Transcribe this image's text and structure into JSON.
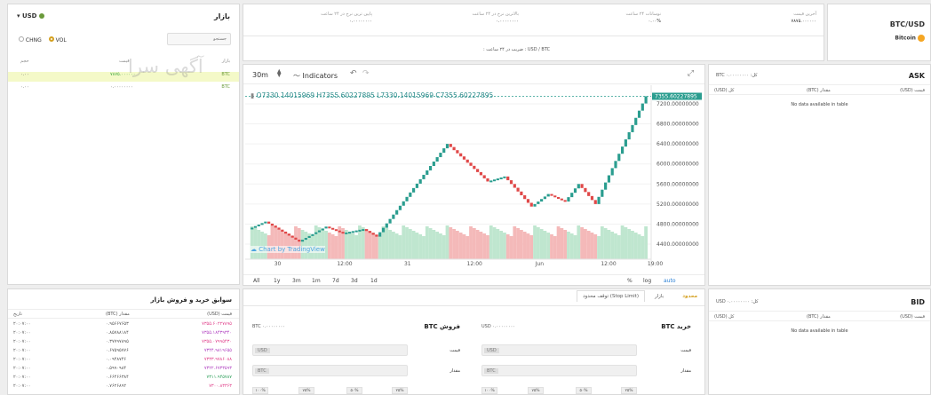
{
  "market": {
    "title": "بازار",
    "currency": "USD",
    "search_placeholder": "جستجو",
    "opt_chng": "CHNG",
    "opt_vol": "VOL",
    "columns": [
      "بازار",
      "قیمت",
      "حجم"
    ],
    "rows": [
      {
        "price": "۷۸۷۵.۰۰۰۰۰۰",
        "vol": "۰.۰۰",
        "pair": "BTC",
        "selected": true
      },
      {
        "price": "۰.۰۰۰۰۰۰۰۰",
        "vol": "۰.۰۰",
        "pair": "BTC",
        "selected": false
      }
    ]
  },
  "stats": {
    "last_price": {
      "label": "آخرین قیمت",
      "value": "۷۸۷۵.۰۰۰۰۰۰"
    },
    "change_24h": {
      "label": "نوسانات ۲۴ ساعت",
      "value": "۰.۰۰%"
    },
    "high_24h": {
      "label": "بالاترین نرخ در ۲۴ ساعت",
      "value": "۰.۰۰۰۰۰۰۰۰"
    },
    "low_24h": {
      "label": "پایین ترین نرخ در ۲۴ ساعت",
      "value": "۰.۰۰۰۰۰۰۰۰"
    },
    "rate_line": "USD / BTC : ضریب در ۲۴ ساعت :"
  },
  "pair": {
    "name": "BTC/USD",
    "coin": "Bitcoin"
  },
  "watermark": "آگهی سرا",
  "chart_data": {
    "type": "candlestick",
    "interval": "30m",
    "indicators_label": "Indicators",
    "ohlc": {
      "O": "7330.14015969",
      "H": "7355.60227895",
      "L": "7330.14015969",
      "C": "7355.60227895"
    },
    "current_price_label": "7355.60227895",
    "y_ticks": [
      "7200.00000000",
      "6800.00000000",
      "6400.00000000",
      "6000.00000000",
      "5600.00000000",
      "5200.00000000",
      "4800.00000000",
      "4400.00000000"
    ],
    "ylim": [
      4100,
      7500
    ],
    "x_ticks": [
      "30",
      "12:00",
      "31",
      "12:00",
      "Jun",
      "12:00",
      "19:00"
    ],
    "path": [
      [
        0,
        4700
      ],
      [
        5,
        4850
      ],
      [
        15,
        4450
      ],
      [
        23,
        4750
      ],
      [
        28,
        4620
      ],
      [
        34,
        4700
      ],
      [
        38,
        4550
      ],
      [
        59,
        6400
      ],
      [
        71,
        5650
      ],
      [
        76,
        5750
      ],
      [
        84,
        5150
      ],
      [
        89,
        5400
      ],
      [
        94,
        5250
      ],
      [
        98,
        5600
      ],
      [
        103,
        5200
      ],
      [
        118,
        7350
      ]
    ],
    "timeframes": [
      "All",
      "1y",
      "3m",
      "1m",
      "7d",
      "3d",
      "1d"
    ],
    "controls": [
      "%",
      "log",
      "auto"
    ],
    "credit": "Chart by TradingView",
    "volume_colors": {
      "up": "#bfe6cf",
      "down": "#f4b9b9"
    },
    "colors": {
      "up": "#2a9d8f",
      "down": "#e04848"
    }
  },
  "ask": {
    "title": "ASK",
    "total_label": "کل: ۰.۰۰۰۰۰۰۰۰ BTC",
    "cols": [
      "قیمت (USD)",
      "مقدار (BTC)",
      "کل (USD)"
    ],
    "empty": "No data available in table"
  },
  "bid": {
    "title": "BID",
    "total_label": "کل: ۰.۰۰۰۰۰۰۰۰ USD",
    "cols": [
      "قیمت (USD)",
      "مقدار (BTC)",
      "کل (USD)"
    ],
    "empty": "No data available in table"
  },
  "history": {
    "title": "سوابق خرید و فروش بازار",
    "cols": [
      "قیمت (USD)",
      "مقدار (BTC)",
      "تاریخ"
    ],
    "rows": [
      {
        "price": "۷۳۵۵.۶۰۲۲۷۸۹۵",
        "amount": "۰.۹۵۶۶۷۶۵۳",
        "time": "۲۰:۰۷:۰۰",
        "color": "pink"
      },
      {
        "price": "۷۳۵۵.۱۸۴۳۹۳۴۰",
        "amount": "۰.۸۵۷۸۸۱۸۴",
        "time": "۲۰:۰۷:۰۰",
        "color": "purple"
      },
      {
        "price": "۷۳۵۵.۰۷۹۹۵۴۳۰",
        "amount": "۰.۳۷۷۹۷۸۹۵",
        "time": "۲۰:۰۷:۰۰",
        "color": "pink"
      },
      {
        "price": "۷۳۴۴.۹۸۱۹۶۵۵",
        "amount": "۰.۶۷۵۹۵۷۷۶",
        "time": "۲۰:۰۷:۰۰",
        "color": "purple"
      },
      {
        "price": "۷۳۳۳.۹۷۸۶۰۸۸",
        "amount": "۰.۰۹۴۸۷۴۶",
        "time": "۲۰:۰۷:۰۰",
        "color": "pink"
      },
      {
        "price": "۷۳۲۲.۶۷۳۳۵۹۳",
        "amount": "۰.۵۹۹۰۹۸۴",
        "time": "۲۰:۰۷:۰۰",
        "color": "purple"
      },
      {
        "price": "۷۳۱۱.۹۴۵۷۸۷",
        "amount": "۰.۶۶۴۶۶۳۸۴",
        "time": "۲۰:۰۷:۰۰",
        "color": "green"
      },
      {
        "price": "۷۳۰۰.۸۳۳۶۳",
        "amount": "۰.۷۶۲۶۸۹۲",
        "time": "۲۰:۰۷:۰۰",
        "color": "pink"
      }
    ]
  },
  "trade": {
    "tabs": [
      "محدود",
      "بازار",
      "توقف محدود (Stop Limit)"
    ],
    "buy": {
      "title": "خرید BTC",
      "balance": "۰.۰۰۰۰۰۰۰۰ USD",
      "price_label": "قیمت",
      "amount_label": "مقدار",
      "price_unit": "USD",
      "amount_unit": "BTC"
    },
    "sell": {
      "title": "فروش BTC",
      "balance": "۰.۰۰۰۰۰۰۰۰ BTC",
      "price_label": "قیمت",
      "amount_label": "مقدار",
      "price_unit": "USD",
      "amount_unit": "BTC"
    },
    "percents": [
      "۲۵%",
      "۵۰%",
      "۷۵%",
      "۱۰۰%"
    ]
  }
}
